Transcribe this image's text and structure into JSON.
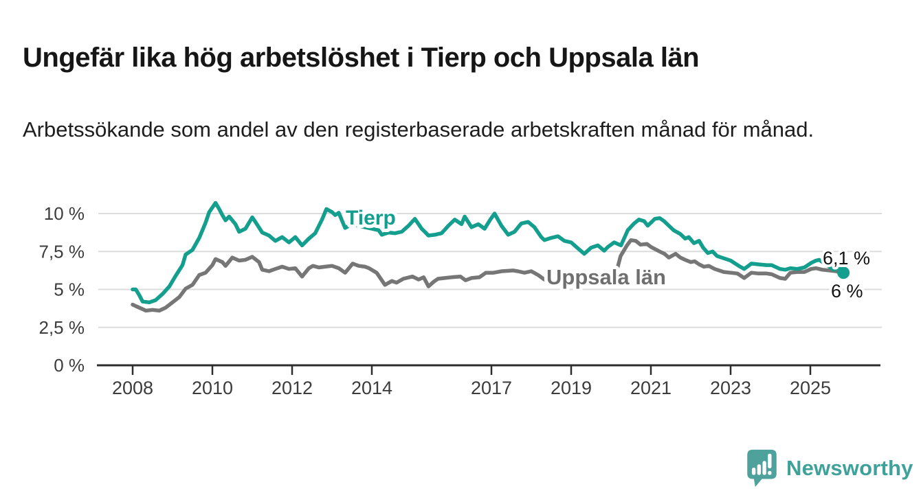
{
  "header": {
    "title": "Ungefär lika hög arbetslöshet i Tierp och Uppsala län",
    "subtitle": "Arbetssökande som andel av den registerbaserade arbetskraften månad för månad."
  },
  "chart_data": {
    "type": "line",
    "title": "Ungefär lika hög arbetslöshet i Tierp och Uppsala län",
    "xlabel": "",
    "ylabel": "",
    "x_unit": "decimal year, monthly observations",
    "xlim": [
      2007.9,
      2026.2
    ],
    "ylim": [
      0,
      11.3
    ],
    "grid": "horizontal",
    "x_ticks": [
      {
        "value": 2008,
        "label": "2008"
      },
      {
        "value": 2010,
        "label": "2010"
      },
      {
        "value": 2012,
        "label": "2012"
      },
      {
        "value": 2014,
        "label": "2014"
      },
      {
        "value": 2017,
        "label": "2017"
      },
      {
        "value": 2019,
        "label": "2019"
      },
      {
        "value": 2021,
        "label": "2021"
      },
      {
        "value": 2023,
        "label": "2023"
      },
      {
        "value": 2025,
        "label": "2025"
      }
    ],
    "y_ticks": [
      {
        "value": 0,
        "label": "0 %"
      },
      {
        "value": 2.5,
        "label": "2,5 %"
      },
      {
        "value": 5,
        "label": "5 %"
      },
      {
        "value": 7.5,
        "label": "7,5 %"
      },
      {
        "value": 10,
        "label": "10 %"
      }
    ],
    "series": [
      {
        "name": "Tierp",
        "color": "#149e8e",
        "label_color": "#149e8e",
        "end_label": "6,1 %",
        "end_value": 6.1,
        "end_dot": true,
        "points": [
          [
            2008.0,
            5.0
          ],
          [
            2008.08,
            5.0
          ],
          [
            2008.17,
            4.6
          ],
          [
            2008.25,
            4.2
          ],
          [
            2008.42,
            4.15
          ],
          [
            2008.58,
            4.3
          ],
          [
            2008.75,
            4.7
          ],
          [
            2008.92,
            5.2
          ],
          [
            2009.08,
            5.9
          ],
          [
            2009.25,
            6.6
          ],
          [
            2009.33,
            7.3
          ],
          [
            2009.5,
            7.6
          ],
          [
            2009.67,
            8.4
          ],
          [
            2009.83,
            9.4
          ],
          [
            2009.92,
            10.1
          ],
          [
            2010.08,
            10.7
          ],
          [
            2010.17,
            10.3
          ],
          [
            2010.25,
            9.9
          ],
          [
            2010.33,
            9.55
          ],
          [
            2010.42,
            9.8
          ],
          [
            2010.58,
            9.3
          ],
          [
            2010.67,
            8.8
          ],
          [
            2010.83,
            9.0
          ],
          [
            2011.0,
            9.75
          ],
          [
            2011.08,
            9.45
          ],
          [
            2011.25,
            8.75
          ],
          [
            2011.42,
            8.55
          ],
          [
            2011.58,
            8.2
          ],
          [
            2011.75,
            8.45
          ],
          [
            2011.92,
            8.1
          ],
          [
            2012.08,
            8.45
          ],
          [
            2012.25,
            7.9
          ],
          [
            2012.42,
            8.35
          ],
          [
            2012.58,
            8.7
          ],
          [
            2012.75,
            9.6
          ],
          [
            2012.86,
            10.3
          ],
          [
            2013.0,
            10.1
          ],
          [
            2013.08,
            9.9
          ],
          [
            2013.17,
            10.05
          ],
          [
            2013.33,
            9.05
          ],
          [
            2013.5,
            9.3
          ],
          [
            2013.67,
            9.2
          ],
          [
            2013.83,
            9.1
          ],
          [
            2014.0,
            9.0
          ],
          [
            2014.17,
            8.9
          ],
          [
            2014.25,
            8.6
          ],
          [
            2014.42,
            8.75
          ],
          [
            2014.58,
            8.7
          ],
          [
            2014.75,
            8.8
          ],
          [
            2014.92,
            9.2
          ],
          [
            2015.08,
            9.65
          ],
          [
            2015.25,
            9.0
          ],
          [
            2015.42,
            8.55
          ],
          [
            2015.58,
            8.6
          ],
          [
            2015.75,
            8.7
          ],
          [
            2015.92,
            9.2
          ],
          [
            2016.08,
            9.6
          ],
          [
            2016.25,
            9.3
          ],
          [
            2016.33,
            9.8
          ],
          [
            2016.5,
            9.1
          ],
          [
            2016.67,
            9.3
          ],
          [
            2016.83,
            9.0
          ],
          [
            2016.97,
            9.6
          ],
          [
            2017.08,
            10.0
          ],
          [
            2017.25,
            9.2
          ],
          [
            2017.42,
            8.6
          ],
          [
            2017.58,
            8.8
          ],
          [
            2017.75,
            9.35
          ],
          [
            2017.92,
            9.45
          ],
          [
            2018.08,
            9.1
          ],
          [
            2018.25,
            8.45
          ],
          [
            2018.33,
            8.25
          ],
          [
            2018.5,
            8.4
          ],
          [
            2018.67,
            8.5
          ],
          [
            2018.83,
            8.2
          ],
          [
            2019.0,
            8.1
          ],
          [
            2019.17,
            7.7
          ],
          [
            2019.33,
            7.35
          ],
          [
            2019.5,
            7.75
          ],
          [
            2019.67,
            7.9
          ],
          [
            2019.83,
            7.55
          ],
          [
            2019.92,
            7.8
          ],
          [
            2020.08,
            8.1
          ],
          [
            2020.25,
            7.9
          ],
          [
            2020.42,
            8.9
          ],
          [
            2020.58,
            9.35
          ],
          [
            2020.7,
            9.6
          ],
          [
            2020.83,
            9.5
          ],
          [
            2020.92,
            9.2
          ],
          [
            2021.1,
            9.65
          ],
          [
            2021.22,
            9.7
          ],
          [
            2021.33,
            9.5
          ],
          [
            2021.45,
            9.2
          ],
          [
            2021.57,
            8.9
          ],
          [
            2021.74,
            8.65
          ],
          [
            2021.86,
            8.35
          ],
          [
            2021.95,
            8.45
          ],
          [
            2022.08,
            8.05
          ],
          [
            2022.21,
            8.2
          ],
          [
            2022.31,
            7.75
          ],
          [
            2022.43,
            7.4
          ],
          [
            2022.55,
            7.5
          ],
          [
            2022.66,
            7.2
          ],
          [
            2022.83,
            7.05
          ],
          [
            2023.0,
            6.9
          ],
          [
            2023.24,
            6.5
          ],
          [
            2023.34,
            6.35
          ],
          [
            2023.52,
            6.7
          ],
          [
            2023.7,
            6.65
          ],
          [
            2023.9,
            6.6
          ],
          [
            2024.03,
            6.6
          ],
          [
            2024.24,
            6.35
          ],
          [
            2024.37,
            6.3
          ],
          [
            2024.5,
            6.4
          ],
          [
            2024.67,
            6.35
          ],
          [
            2024.85,
            6.45
          ],
          [
            2025.02,
            6.75
          ],
          [
            2025.14,
            6.9
          ],
          [
            2025.22,
            6.95
          ],
          [
            2025.36,
            6.7
          ],
          [
            2025.48,
            6.5
          ],
          [
            2025.59,
            6.3
          ],
          [
            2025.71,
            6.45
          ],
          [
            2025.83,
            6.1
          ]
        ]
      },
      {
        "name": "Uppsala län",
        "color": "#767676",
        "label_color": "#6f6f6f",
        "end_label": "6 %",
        "end_value": 6.0,
        "end_dot": false,
        "points": [
          [
            2008.0,
            4.0
          ],
          [
            2008.08,
            3.9
          ],
          [
            2008.25,
            3.7
          ],
          [
            2008.33,
            3.6
          ],
          [
            2008.5,
            3.65
          ],
          [
            2008.67,
            3.6
          ],
          [
            2008.83,
            3.8
          ],
          [
            2009.0,
            4.15
          ],
          [
            2009.17,
            4.5
          ],
          [
            2009.33,
            5.05
          ],
          [
            2009.5,
            5.3
          ],
          [
            2009.67,
            5.95
          ],
          [
            2009.83,
            6.1
          ],
          [
            2010.0,
            6.6
          ],
          [
            2010.08,
            7.0
          ],
          [
            2010.25,
            6.8
          ],
          [
            2010.33,
            6.55
          ],
          [
            2010.5,
            7.1
          ],
          [
            2010.67,
            6.9
          ],
          [
            2010.83,
            6.95
          ],
          [
            2011.0,
            7.15
          ],
          [
            2011.17,
            6.8
          ],
          [
            2011.25,
            6.3
          ],
          [
            2011.42,
            6.2
          ],
          [
            2011.58,
            6.35
          ],
          [
            2011.75,
            6.5
          ],
          [
            2011.92,
            6.35
          ],
          [
            2012.08,
            6.4
          ],
          [
            2012.25,
            5.85
          ],
          [
            2012.42,
            6.4
          ],
          [
            2012.52,
            6.55
          ],
          [
            2012.67,
            6.45
          ],
          [
            2012.83,
            6.5
          ],
          [
            2013.0,
            6.55
          ],
          [
            2013.17,
            6.4
          ],
          [
            2013.33,
            6.1
          ],
          [
            2013.52,
            6.7
          ],
          [
            2013.67,
            6.55
          ],
          [
            2013.83,
            6.5
          ],
          [
            2013.93,
            6.4
          ],
          [
            2014.12,
            6.1
          ],
          [
            2014.33,
            5.3
          ],
          [
            2014.5,
            5.55
          ],
          [
            2014.62,
            5.45
          ],
          [
            2014.79,
            5.7
          ],
          [
            2015.02,
            5.85
          ],
          [
            2015.17,
            5.65
          ],
          [
            2015.3,
            5.8
          ],
          [
            2015.42,
            5.2
          ],
          [
            2015.55,
            5.5
          ],
          [
            2015.66,
            5.7
          ],
          [
            2015.83,
            5.75
          ],
          [
            2016.0,
            5.8
          ],
          [
            2016.22,
            5.85
          ],
          [
            2016.35,
            5.6
          ],
          [
            2016.5,
            5.75
          ],
          [
            2016.7,
            5.8
          ],
          [
            2016.86,
            6.1
          ],
          [
            2017.05,
            6.1
          ],
          [
            2017.26,
            6.2
          ],
          [
            2017.55,
            6.25
          ],
          [
            2017.66,
            6.2
          ],
          [
            2017.83,
            6.1
          ],
          [
            2018.0,
            6.2
          ],
          [
            2018.17,
            5.95
          ],
          [
            2018.33,
            5.65
          ],
          [
            2018.58,
            5.5
          ],
          [
            2018.83,
            5.45
          ],
          [
            2019.08,
            5.55
          ],
          [
            2019.33,
            5.6
          ],
          [
            2019.58,
            5.7
          ],
          [
            2019.83,
            5.85
          ],
          [
            2020.0,
            6.0
          ],
          [
            2020.16,
            6.4
          ],
          [
            2020.24,
            7.2
          ],
          [
            2020.4,
            7.9
          ],
          [
            2020.5,
            8.25
          ],
          [
            2020.62,
            8.2
          ],
          [
            2020.74,
            7.95
          ],
          [
            2020.9,
            8.0
          ],
          [
            2021.0,
            7.8
          ],
          [
            2021.22,
            7.5
          ],
          [
            2021.34,
            7.35
          ],
          [
            2021.45,
            7.1
          ],
          [
            2021.62,
            7.35
          ],
          [
            2021.74,
            7.1
          ],
          [
            2021.86,
            6.95
          ],
          [
            2022.0,
            6.8
          ],
          [
            2022.1,
            6.85
          ],
          [
            2022.21,
            6.65
          ],
          [
            2022.33,
            6.5
          ],
          [
            2022.45,
            6.55
          ],
          [
            2022.6,
            6.35
          ],
          [
            2022.83,
            6.15
          ],
          [
            2023.0,
            6.1
          ],
          [
            2023.17,
            6.05
          ],
          [
            2023.34,
            5.75
          ],
          [
            2023.52,
            6.1
          ],
          [
            2023.7,
            6.05
          ],
          [
            2023.9,
            6.05
          ],
          [
            2024.03,
            6.0
          ],
          [
            2024.24,
            5.75
          ],
          [
            2024.37,
            5.7
          ],
          [
            2024.5,
            6.1
          ],
          [
            2024.67,
            6.15
          ],
          [
            2024.85,
            6.15
          ],
          [
            2025.02,
            6.35
          ],
          [
            2025.14,
            6.4
          ],
          [
            2025.3,
            6.3
          ],
          [
            2025.48,
            6.25
          ],
          [
            2025.65,
            6.2
          ],
          [
            2025.83,
            6.0
          ]
        ]
      }
    ],
    "colors": {
      "grid": "#dcdcdc",
      "axis": "#2d2d2d",
      "tick_label": "#3c3c3c",
      "end_label_text": "#121212"
    }
  },
  "branding": {
    "wordmark": "Newsworthy",
    "icon": "bar-chart-speech-bubble-icon",
    "icon_color": "#4fa19b",
    "text_color": "#3fa29a"
  }
}
